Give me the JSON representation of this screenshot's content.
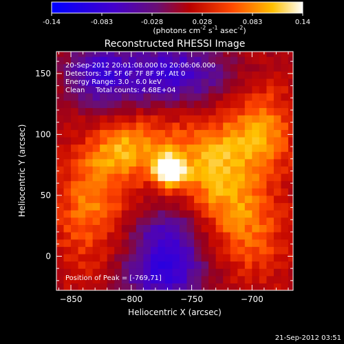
{
  "colorbar": {
    "ticks": [
      "-0.14",
      "-0.083",
      "-0.028",
      "0.028",
      "0.083",
      "0.14"
    ],
    "unit_main": "(photons cm",
    "unit_exp1": "-2",
    "unit_mid": " s",
    "unit_exp2": "-1",
    "unit_end": " asec",
    "unit_exp3": "-2",
    "unit_close": ")"
  },
  "annotations": {
    "line1": "20-Sep-2012 20:01:08.000 to 20:06:06.000",
    "line2": "Detectors: 3F 5F 6F 7F 8F 9F, Att 0",
    "line3": "Energy Range: 3.0 - 6.0 keV",
    "line4": "Clean     Total counts: 4.68E+04",
    "peak": "Position of Peak = [-769,71]"
  },
  "timestamp": "21-Sep-2012 03:51",
  "colors": {
    "background": "#000000",
    "foreground": "#ffffff"
  },
  "chart_data": {
    "type": "heatmap",
    "title": "Reconstructed RHESSI Image",
    "xlabel": "Heliocentric X (arcsec)",
    "ylabel": "Heliocentric Y (arcsec)",
    "xlim": [
      -862,
      -666
    ],
    "ylim": [
      -28,
      168
    ],
    "xticks": [
      -850,
      -800,
      -750,
      -700
    ],
    "yticks": [
      0,
      50,
      100,
      150
    ],
    "colorscale_range": [
      -0.14,
      0.14
    ],
    "colormap": "blue-purple-red-yellow-white",
    "peak": {
      "x": -769,
      "y": 71,
      "value": 0.14
    },
    "features": [
      {
        "x": -769,
        "y": 71,
        "value": 0.14,
        "sx": 9,
        "sy": 9,
        "label": "peak"
      },
      {
        "x": -810,
        "y": 85,
        "value": 0.05,
        "sx": 20,
        "sy": 14
      },
      {
        "x": -790,
        "y": 100,
        "value": 0.04,
        "sx": 25,
        "sy": 14
      },
      {
        "x": -840,
        "y": 25,
        "value": 0.04,
        "sx": 18,
        "sy": 35
      },
      {
        "x": -820,
        "y": 55,
        "value": 0.04,
        "sx": 25,
        "sy": 25
      },
      {
        "x": -720,
        "y": 90,
        "value": 0.055,
        "sx": 30,
        "sy": 22
      },
      {
        "x": -690,
        "y": 110,
        "value": 0.05,
        "sx": 18,
        "sy": 25
      },
      {
        "x": -725,
        "y": 45,
        "value": 0.045,
        "sx": 20,
        "sy": 22
      },
      {
        "x": -700,
        "y": 20,
        "value": 0.05,
        "sx": 22,
        "sy": 30
      },
      {
        "x": -745,
        "y": 70,
        "value": 0.035,
        "sx": 22,
        "sy": 20
      },
      {
        "x": -830,
        "y": 150,
        "value": -0.07,
        "sx": 18,
        "sy": 18
      },
      {
        "x": -770,
        "y": 150,
        "value": -0.09,
        "sx": 35,
        "sy": 18
      },
      {
        "x": -770,
        "y": 10,
        "value": -0.09,
        "sx": 22,
        "sy": 22
      },
      {
        "x": -775,
        "y": -20,
        "value": -0.06,
        "sx": 25,
        "sy": 12
      }
    ]
  }
}
